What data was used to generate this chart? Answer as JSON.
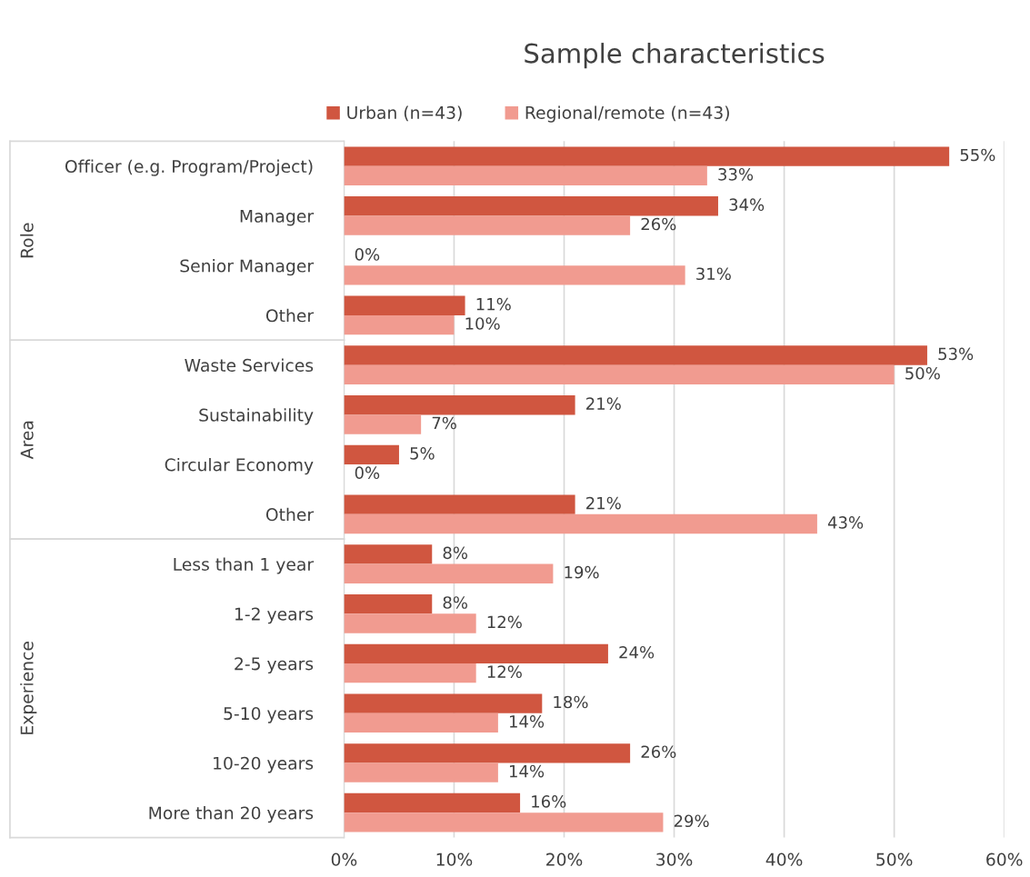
{
  "chart_data": {
    "type": "bar",
    "orientation": "horizontal",
    "title": "Sample characteristics",
    "categories": [
      "Officer (e.g. Program/Project)",
      "Manager",
      "Senior Manager",
      "Other",
      "Waste Services",
      "Sustainability",
      "Circular Economy",
      "Other",
      "Less than 1 year",
      "1-2 years",
      "2-5 years",
      "5-10 years",
      "10-20 years",
      "More than 20 years"
    ],
    "series": [
      {
        "name": "Urban (n=43)",
        "color": "#d05640",
        "values": [
          55,
          34,
          0,
          11,
          53,
          21,
          5,
          21,
          8,
          8,
          24,
          18,
          26,
          16
        ],
        "value_labels": [
          "55%",
          "34%",
          "0%",
          "11%",
          "53%",
          "21%",
          "5%",
          "21%",
          "8%",
          "8%",
          "24%",
          "18%",
          "26%",
          "16%"
        ]
      },
      {
        "name": "Regional/remote (n=43)",
        "color": "#f19b90",
        "values": [
          33,
          26,
          31,
          10,
          50,
          7,
          0,
          43,
          19,
          12,
          12,
          14,
          14,
          29
        ],
        "value_labels": [
          "33%",
          "26%",
          "31%",
          "10%",
          "50%",
          "7%",
          "0%",
          "43%",
          "19%",
          "12%",
          "12%",
          "14%",
          "14%",
          "29%"
        ]
      }
    ],
    "xlim": [
      0,
      60
    ],
    "xticks": [
      {
        "value": 0,
        "label": "0%"
      },
      {
        "value": 10,
        "label": "10%"
      },
      {
        "value": 20,
        "label": "20%"
      },
      {
        "value": 30,
        "label": "30%"
      },
      {
        "value": 40,
        "label": "40%"
      },
      {
        "value": 50,
        "label": "50%"
      },
      {
        "value": 60,
        "label": "60%"
      }
    ],
    "annotations": [
      "Role",
      "Area",
      "Experience"
    ],
    "grid": "x",
    "legend": "top"
  }
}
